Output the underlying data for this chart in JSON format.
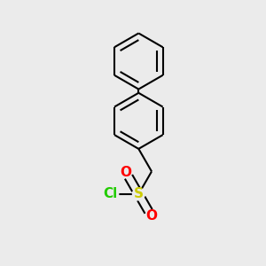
{
  "background_color": "#ebebeb",
  "bond_color": "#000000",
  "atom_colors": {
    "O": "#ff0000",
    "S": "#cccc00",
    "Cl": "#22cc00",
    "C": "#000000"
  },
  "line_width": 1.5,
  "dbo": 0.018,
  "figsize": [
    3.0,
    3.0
  ],
  "dpi": 100,
  "xlim": [
    -0.8,
    0.8
  ],
  "ylim": [
    -1.45,
    1.35
  ]
}
